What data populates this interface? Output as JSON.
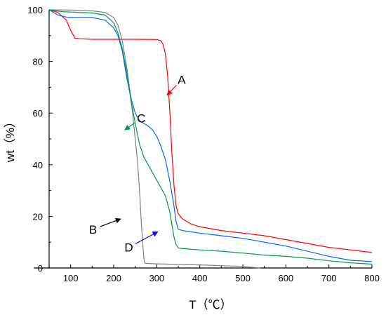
{
  "chart_data": {
    "type": "line",
    "xlabel": "T（℃）",
    "ylabel": "wt（%）",
    "xlim": [
      50,
      800
    ],
    "ylim": [
      0,
      100
    ],
    "xticks": [
      100,
      200,
      300,
      400,
      500,
      600,
      700,
      800
    ],
    "yticks": [
      0,
      20,
      40,
      60,
      80,
      100
    ],
    "grid": false,
    "legend": "none",
    "series": [
      {
        "name": "A",
        "color": "#ff0000",
        "x": [
          50,
          70,
          90,
          100,
          110,
          120,
          150,
          200,
          250,
          300,
          310,
          315,
          320,
          325,
          330,
          335,
          340,
          345,
          350,
          360,
          380,
          400,
          450,
          500,
          550,
          600,
          650,
          700,
          750,
          800
        ],
        "y": [
          100,
          99,
          96,
          92,
          89,
          88.8,
          88.6,
          88.6,
          88.6,
          88.5,
          88,
          86.5,
          83,
          75,
          62,
          45,
          32,
          24,
          21,
          19,
          17,
          16,
          14.5,
          13.5,
          12.5,
          11,
          9.5,
          8,
          7,
          6
        ]
      },
      {
        "name": "B",
        "color": "#808080",
        "x": [
          50,
          100,
          150,
          180,
          200,
          210,
          220,
          230,
          240,
          245,
          250,
          255,
          260,
          265,
          270,
          272,
          275,
          300,
          400,
          500,
          540
        ],
        "y": [
          100,
          99.9,
          99.6,
          99,
          97,
          94,
          88,
          78,
          66,
          58,
          50,
          42,
          30,
          15,
          4,
          2,
          1.8,
          1.6,
          1.2,
          0.6,
          0
        ]
      },
      {
        "name": "C",
        "color": "#0066ff",
        "x": [
          50,
          70,
          90,
          110,
          150,
          180,
          200,
          210,
          220,
          230,
          240,
          250,
          260,
          270,
          280,
          290,
          300,
          310,
          320,
          330,
          340,
          345,
          350,
          360,
          400,
          450,
          500,
          550,
          600,
          650,
          700,
          750,
          800
        ],
        "y": [
          100,
          98,
          97.2,
          97,
          97,
          96,
          93,
          90,
          84,
          74,
          66,
          60,
          57,
          56,
          55,
          53.5,
          51,
          47,
          42,
          34,
          24,
          18,
          15,
          14.5,
          13.5,
          12.5,
          11.5,
          10,
          8.5,
          6.5,
          4.5,
          3,
          2.5
        ]
      },
      {
        "name": "D",
        "color": "#009944",
        "x": [
          50,
          80,
          120,
          150,
          180,
          200,
          210,
          220,
          230,
          240,
          250,
          255,
          260,
          270,
          280,
          290,
          300,
          310,
          320,
          330,
          335,
          340,
          345,
          350,
          360,
          400,
          450,
          500,
          550,
          600,
          650,
          700,
          750,
          800
        ],
        "y": [
          100,
          99.3,
          99,
          98.8,
          98,
          95,
          91,
          85,
          76,
          65,
          56,
          52,
          48,
          43,
          40,
          37,
          34,
          31,
          28,
          22,
          17,
          12,
          9,
          7.8,
          7.5,
          7,
          6.5,
          5.8,
          5,
          4.5,
          3.8,
          2.8,
          2,
          1.5
        ]
      }
    ],
    "annotations": [
      {
        "label": "A",
        "color": "#ff0000",
        "text_x": 358,
        "text_y": 73,
        "arrow_to_x": 324,
        "arrow_to_y": 67
      },
      {
        "label": "C",
        "color": "#009944",
        "text_x": 264,
        "text_y": 58,
        "arrow_to_x": 226,
        "arrow_to_y": 53.5
      },
      {
        "label": "B",
        "color": "#000000",
        "text_x": 152,
        "text_y": 15,
        "arrow_to_x": 216,
        "arrow_to_y": 19
      },
      {
        "label": "D",
        "color": "#0000ff",
        "text_x": 235,
        "text_y": 8,
        "arrow_to_x": 302,
        "arrow_to_y": 14
      }
    ]
  }
}
